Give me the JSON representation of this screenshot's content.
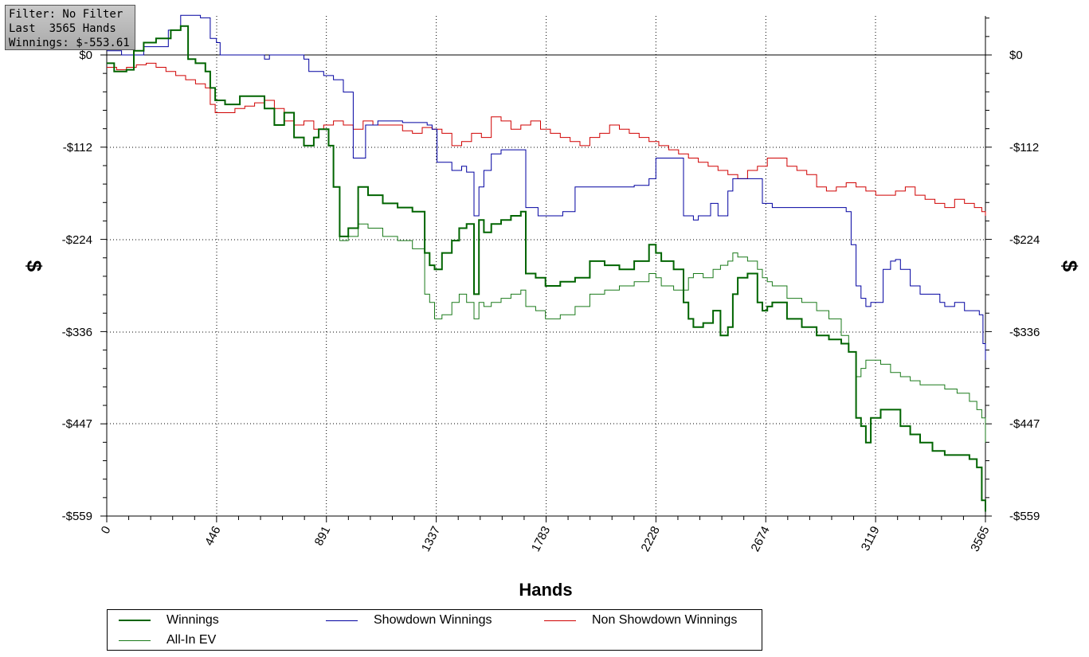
{
  "info_box": {
    "filter": "Filter: No Filter",
    "last_hands": "Last  3565 Hands",
    "winnings": "Winnings: $-553.61"
  },
  "chart_data": {
    "type": "line",
    "xlabel": "Hands",
    "ylabel": "$",
    "xlim": [
      0,
      3565
    ],
    "ylim": [
      -559,
      47
    ],
    "x_ticks": [
      0,
      446,
      891,
      1337,
      1783,
      2228,
      2674,
      3119,
      3565
    ],
    "x_tick_labels": [
      "0",
      "446",
      "891",
      "1337",
      "1783",
      "2228",
      "2674",
      "3119",
      "3565"
    ],
    "y_ticks": [
      0,
      -112,
      -224,
      -336,
      -447,
      -559
    ],
    "y_tick_labels": [
      "$0",
      "-$112",
      "-$224",
      "-$336",
      "-$447",
      "-$559"
    ],
    "grid": true,
    "legend_position": "bottom",
    "series": [
      {
        "name": "Winnings",
        "color": "#006400",
        "width": 2,
        "x": [
          0,
          30,
          80,
          110,
          150,
          200,
          260,
          300,
          330,
          360,
          400,
          420,
          440,
          480,
          540,
          600,
          640,
          680,
          720,
          760,
          800,
          840,
          860,
          900,
          920,
          945,
          980,
          1020,
          1060,
          1120,
          1180,
          1240,
          1290,
          1310,
          1330,
          1360,
          1400,
          1430,
          1460,
          1490,
          1510,
          1530,
          1560,
          1600,
          1640,
          1680,
          1700,
          1740,
          1780,
          1840,
          1900,
          1960,
          2020,
          2080,
          2140,
          2200,
          2228,
          2250,
          2300,
          2340,
          2360,
          2380,
          2420,
          2460,
          2490,
          2520,
          2540,
          2560,
          2600,
          2640,
          2660,
          2680,
          2700,
          2760,
          2820,
          2880,
          2930,
          2980,
          3010,
          3040,
          3060,
          3080,
          3100,
          3140,
          3180,
          3220,
          3260,
          3300,
          3350,
          3400,
          3450,
          3500,
          3530,
          3550,
          3565
        ],
        "y": [
          -10,
          -20,
          -18,
          5,
          15,
          20,
          30,
          35,
          -5,
          -10,
          -20,
          -40,
          -55,
          -60,
          -50,
          -50,
          -65,
          -85,
          -70,
          -100,
          -110,
          -100,
          -90,
          -110,
          -160,
          -220,
          -210,
          -160,
          -170,
          -180,
          -185,
          -190,
          -240,
          -255,
          -260,
          -240,
          -225,
          -210,
          -205,
          -290,
          -200,
          -215,
          -205,
          -200,
          -195,
          -190,
          -265,
          -270,
          -280,
          -275,
          -270,
          -250,
          -255,
          -260,
          -250,
          -230,
          -240,
          -250,
          -260,
          -300,
          -320,
          -330,
          -325,
          -310,
          -340,
          -330,
          -290,
          -270,
          -265,
          -300,
          -310,
          -305,
          -300,
          -320,
          -330,
          -340,
          -345,
          -350,
          -360,
          -440,
          -450,
          -470,
          -440,
          -430,
          -430,
          -450,
          -460,
          -470,
          -480,
          -485,
          -485,
          -490,
          -500,
          -540,
          -553.61
        ]
      },
      {
        "name": "All-In EV",
        "color": "#1a7a1a",
        "width": 1,
        "x": [
          0,
          30,
          80,
          110,
          150,
          200,
          260,
          300,
          330,
          360,
          400,
          420,
          440,
          480,
          540,
          600,
          640,
          680,
          720,
          760,
          800,
          840,
          860,
          900,
          920,
          945,
          980,
          1020,
          1060,
          1120,
          1180,
          1240,
          1290,
          1310,
          1330,
          1360,
          1400,
          1430,
          1460,
          1490,
          1510,
          1530,
          1560,
          1600,
          1640,
          1680,
          1700,
          1740,
          1780,
          1840,
          1900,
          1960,
          2020,
          2080,
          2140,
          2200,
          2228,
          2250,
          2300,
          2340,
          2360,
          2380,
          2420,
          2460,
          2490,
          2520,
          2540,
          2560,
          2600,
          2640,
          2660,
          2680,
          2700,
          2760,
          2820,
          2880,
          2930,
          2980,
          3010,
          3040,
          3060,
          3080,
          3100,
          3140,
          3180,
          3220,
          3260,
          3300,
          3350,
          3400,
          3450,
          3500,
          3530,
          3550,
          3565
        ],
        "y": [
          -10,
          -20,
          -18,
          5,
          15,
          20,
          30,
          35,
          -5,
          -10,
          -20,
          -40,
          -55,
          -60,
          -50,
          -50,
          -65,
          -85,
          -70,
          -100,
          -110,
          -100,
          -90,
          -110,
          -160,
          -225,
          -220,
          -205,
          -210,
          -220,
          -225,
          -235,
          -290,
          -300,
          -320,
          -315,
          -300,
          -290,
          -300,
          -320,
          -300,
          -305,
          -300,
          -295,
          -290,
          -285,
          -305,
          -310,
          -320,
          -315,
          -305,
          -290,
          -285,
          -280,
          -275,
          -265,
          -270,
          -280,
          -285,
          -285,
          -270,
          -265,
          -270,
          -260,
          -255,
          -250,
          -240,
          -245,
          -250,
          -260,
          -270,
          -275,
          -280,
          -295,
          -300,
          -310,
          -320,
          -340,
          -360,
          -390,
          -380,
          -370,
          -370,
          -375,
          -385,
          -390,
          -395,
          -400,
          -400,
          -405,
          -410,
          -420,
          -430,
          -440,
          -470
        ]
      },
      {
        "name": "Showdown Winnings",
        "color": "#0000a0",
        "width": 1,
        "x": [
          0,
          60,
          150,
          250,
          300,
          330,
          380,
          420,
          445,
          460,
          500,
          600,
          640,
          660,
          700,
          760,
          800,
          820,
          880,
          920,
          960,
          1000,
          1050,
          1100,
          1200,
          1300,
          1320,
          1340,
          1400,
          1440,
          1460,
          1490,
          1510,
          1530,
          1560,
          1600,
          1640,
          1680,
          1700,
          1750,
          1800,
          1850,
          1900,
          1960,
          2000,
          2040,
          2080,
          2140,
          2200,
          2228,
          2280,
          2320,
          2340,
          2380,
          2400,
          2450,
          2480,
          2520,
          2540,
          2560,
          2600,
          2640,
          2660,
          2700,
          2750,
          2800,
          2850,
          2900,
          2950,
          3000,
          3020,
          3040,
          3060,
          3080,
          3100,
          3150,
          3180,
          3200,
          3220,
          3260,
          3300,
          3340,
          3380,
          3400,
          3440,
          3480,
          3520,
          3540,
          3555,
          3565
        ],
        "y": [
          5,
          0,
          10,
          30,
          48,
          48,
          45,
          20,
          15,
          0,
          0,
          0,
          -5,
          0,
          0,
          0,
          -5,
          -20,
          -25,
          -30,
          -45,
          -125,
          -85,
          -80,
          -82,
          -85,
          -90,
          -130,
          -140,
          -135,
          -142,
          -195,
          -160,
          -140,
          -120,
          -115,
          -115,
          -115,
          -185,
          -195,
          -195,
          -190,
          -160,
          -160,
          -160,
          -160,
          -160,
          -158,
          -150,
          -125,
          -125,
          -125,
          -195,
          -200,
          -195,
          -180,
          -195,
          -165,
          -150,
          -150,
          -150,
          -150,
          -180,
          -185,
          -185,
          -185,
          -185,
          -185,
          -185,
          -190,
          -230,
          -280,
          -295,
          -305,
          -300,
          -260,
          -250,
          -248,
          -260,
          -280,
          -290,
          -290,
          -300,
          -305,
          -300,
          -310,
          -310,
          -315,
          -350,
          -370
        ]
      },
      {
        "name": "Non Showdown Winnings",
        "color": "#d00000",
        "width": 1,
        "x": [
          0,
          40,
          80,
          120,
          160,
          200,
          240,
          280,
          320,
          360,
          400,
          420,
          440,
          480,
          520,
          560,
          600,
          640,
          680,
          720,
          760,
          800,
          840,
          880,
          920,
          960,
          1000,
          1040,
          1080,
          1120,
          1160,
          1200,
          1240,
          1280,
          1320,
          1360,
          1400,
          1440,
          1480,
          1520,
          1560,
          1600,
          1640,
          1680,
          1720,
          1760,
          1800,
          1840,
          1880,
          1920,
          1960,
          2000,
          2040,
          2080,
          2120,
          2160,
          2200,
          2240,
          2280,
          2320,
          2360,
          2400,
          2440,
          2480,
          2520,
          2560,
          2600,
          2640,
          2680,
          2720,
          2760,
          2800,
          2840,
          2880,
          2920,
          2960,
          3000,
          3040,
          3080,
          3120,
          3160,
          3200,
          3240,
          3280,
          3320,
          3360,
          3400,
          3440,
          3480,
          3520,
          3550,
          3565
        ],
        "y": [
          -15,
          -18,
          -15,
          -12,
          -10,
          -15,
          -20,
          -25,
          -30,
          -35,
          -40,
          -60,
          -70,
          -70,
          -65,
          -62,
          -58,
          -55,
          -65,
          -80,
          -85,
          -80,
          -90,
          -85,
          -80,
          -85,
          -90,
          -80,
          -85,
          -85,
          -85,
          -92,
          -95,
          -88,
          -90,
          -95,
          -110,
          -105,
          -95,
          -100,
          -75,
          -80,
          -90,
          -85,
          -80,
          -90,
          -95,
          -100,
          -105,
          -110,
          -100,
          -95,
          -85,
          -90,
          -95,
          -100,
          -105,
          -110,
          -115,
          -120,
          -125,
          -130,
          -135,
          -140,
          -145,
          -150,
          -140,
          -135,
          -125,
          -125,
          -135,
          -140,
          -145,
          -160,
          -165,
          -160,
          -155,
          -160,
          -165,
          -170,
          -170,
          -165,
          -160,
          -170,
          -175,
          -180,
          -185,
          -175,
          -180,
          -185,
          -190,
          -195
        ]
      }
    ]
  },
  "legend": {
    "items": [
      {
        "label": "Winnings",
        "color": "#006400",
        "width": 2
      },
      {
        "label": "Showdown Winnings",
        "color": "#0000a0",
        "width": 1
      },
      {
        "label": "Non Showdown Winnings",
        "color": "#d00000",
        "width": 1
      },
      {
        "label": "All-In EV",
        "color": "#1a7a1a",
        "width": 1
      }
    ]
  }
}
